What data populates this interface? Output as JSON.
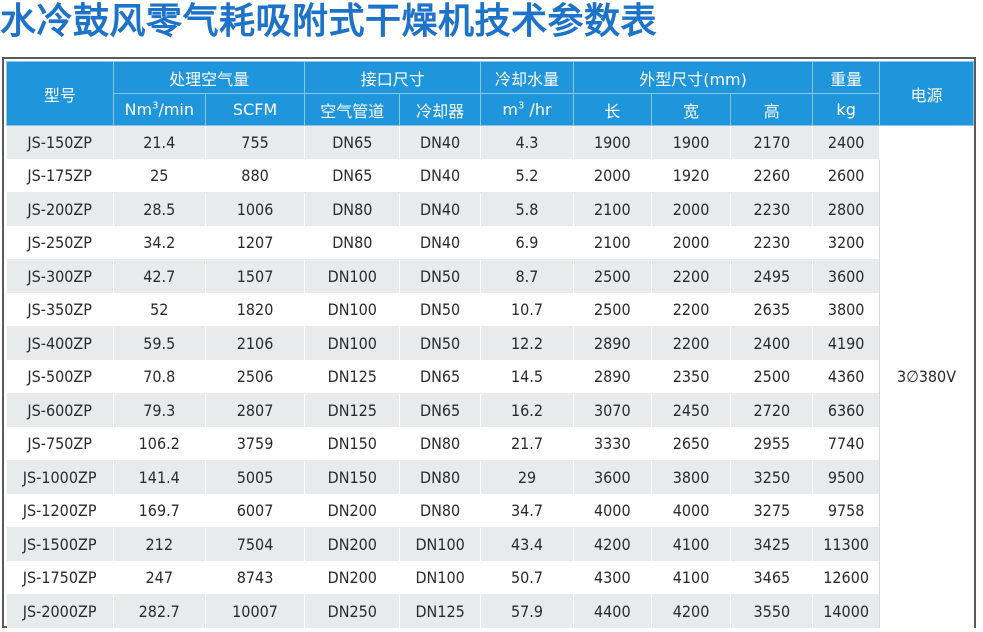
{
  "title": "水冷鼓风零气耗吸附式干燥机技术参数表",
  "headers": {
    "model": "型号",
    "capacity": "处理空气量",
    "capacity_unit1_base": "Nm",
    "capacity_unit1_sup": "3",
    "capacity_unit1_rest": "/min",
    "capacity_unit2": "SCFM",
    "connection": "接口尺寸",
    "connection_air": "空气管道",
    "connection_cooler": "冷却器",
    "cooling_water": "冷却水量",
    "cooling_unit_base": "m",
    "cooling_unit_sup": "3",
    "cooling_unit_rest": " /hr",
    "dimensions": "外型尺寸(mm)",
    "dim_length": "长",
    "dim_width": "宽",
    "dim_height": "高",
    "weight": "重量",
    "weight_unit": "kg",
    "power": "电源"
  },
  "power_value": "3∅380V",
  "rows": [
    {
      "model": "JS-150ZP",
      "nm3": "21.4",
      "scfm": "755",
      "air": "DN65",
      "cooler": "DN40",
      "water": "4.3",
      "l": "1900",
      "w": "1900",
      "h": "2170",
      "kg": "2400"
    },
    {
      "model": "JS-175ZP",
      "nm3": "25",
      "scfm": "880",
      "air": "DN65",
      "cooler": "DN40",
      "water": "5.2",
      "l": "2000",
      "w": "1920",
      "h": "2260",
      "kg": "2600"
    },
    {
      "model": "JS-200ZP",
      "nm3": "28.5",
      "scfm": "1006",
      "air": "DN80",
      "cooler": "DN40",
      "water": "5.8",
      "l": "2100",
      "w": "2000",
      "h": "2230",
      "kg": "2800"
    },
    {
      "model": "JS-250ZP",
      "nm3": "34.2",
      "scfm": "1207",
      "air": "DN80",
      "cooler": "DN40",
      "water": "6.9",
      "l": "2100",
      "w": "2000",
      "h": "2230",
      "kg": "3200"
    },
    {
      "model": "JS-300ZP",
      "nm3": "42.7",
      "scfm": "1507",
      "air": "DN100",
      "cooler": "DN50",
      "water": "8.7",
      "l": "2500",
      "w": "2200",
      "h": "2495",
      "kg": "3600"
    },
    {
      "model": "JS-350ZP",
      "nm3": "52",
      "scfm": "1820",
      "air": "DN100",
      "cooler": "DN50",
      "water": "10.7",
      "l": "2500",
      "w": "2200",
      "h": "2635",
      "kg": "3800"
    },
    {
      "model": "JS-400ZP",
      "nm3": "59.5",
      "scfm": "2106",
      "air": "DN100",
      "cooler": "DN50",
      "water": "12.2",
      "l": "2890",
      "w": "2200",
      "h": "2400",
      "kg": "4190"
    },
    {
      "model": "JS-500ZP",
      "nm3": "70.8",
      "scfm": "2506",
      "air": "DN125",
      "cooler": "DN65",
      "water": "14.5",
      "l": "2890",
      "w": "2350",
      "h": "2500",
      "kg": "4360"
    },
    {
      "model": "JS-600ZP",
      "nm3": "79.3",
      "scfm": "2807",
      "air": "DN125",
      "cooler": "DN65",
      "water": "16.2",
      "l": "3070",
      "w": "2450",
      "h": "2720",
      "kg": "6360"
    },
    {
      "model": "JS-750ZP",
      "nm3": "106.2",
      "scfm": "3759",
      "air": "DN150",
      "cooler": "DN80",
      "water": "21.7",
      "l": "3330",
      "w": "2650",
      "h": "2955",
      "kg": "7740"
    },
    {
      "model": "JS-1000ZP",
      "nm3": "141.4",
      "scfm": "5005",
      "air": "DN150",
      "cooler": "DN80",
      "water": "29",
      "l": "3600",
      "w": "3800",
      "h": "3250",
      "kg": "9500"
    },
    {
      "model": "JS-1200ZP",
      "nm3": "169.7",
      "scfm": "6007",
      "air": "DN200",
      "cooler": "DN80",
      "water": "34.7",
      "l": "4000",
      "w": "4000",
      "h": "3275",
      "kg": "9758"
    },
    {
      "model": "JS-1500ZP",
      "nm3": "212",
      "scfm": "7504",
      "air": "DN200",
      "cooler": "DN100",
      "water": "43.4",
      "l": "4200",
      "w": "4100",
      "h": "3425",
      "kg": "11300"
    },
    {
      "model": "JS-1750ZP",
      "nm3": "247",
      "scfm": "8743",
      "air": "DN200",
      "cooler": "DN100",
      "water": "50.7",
      "l": "4300",
      "w": "4100",
      "h": "3465",
      "kg": "12600"
    },
    {
      "model": "JS-2000ZP",
      "nm3": "282.7",
      "scfm": "10007",
      "air": "DN250",
      "cooler": "DN125",
      "water": "57.9",
      "l": "4400",
      "w": "4200",
      "h": "3550",
      "kg": "14000"
    }
  ]
}
